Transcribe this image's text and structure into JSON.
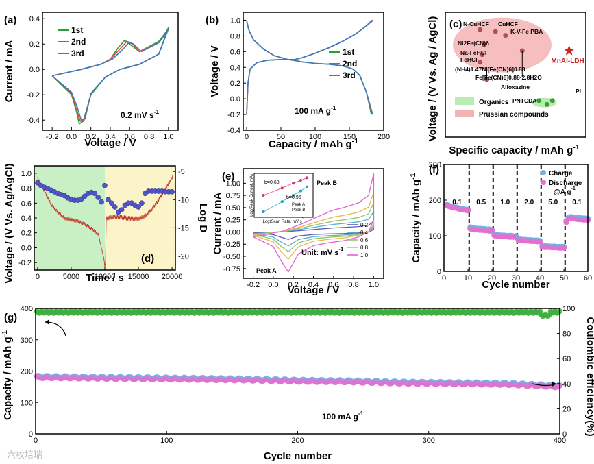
{
  "figure": {
    "watermark": "六枚培瑞"
  },
  "colors": {
    "cycle1": "#2ca02c",
    "cycle2": "#e0483e",
    "cycle3": "#3b7dbf",
    "green_bg": "#c9f0c4",
    "yellow_bg": "#fbf4c8",
    "pink_blob": "#f4b3b3",
    "green_blob": "#b8ecb0",
    "blue_dots": "#5055c8",
    "pink_dots": "#e87ac8",
    "charge": "#6fb4e8",
    "discharge": "#e46fcf",
    "ce_green": "#3fae3f",
    "star": "#d12222"
  },
  "chart_data": [
    {
      "id": "a",
      "type": "line",
      "panel_label": "(a)",
      "xlabel": "Voltage / V",
      "ylabel": "Current / mA",
      "xlim": [
        -0.3,
        1.1
      ],
      "ylim": [
        -0.48,
        0.45
      ],
      "xticks": [
        "-0.2",
        "0.0",
        "0.2",
        "0.4",
        "0.6",
        "0.8",
        "1.0"
      ],
      "yticks": [
        "-0.4",
        "-0.2",
        "0.0",
        "0.2",
        "0.4"
      ],
      "annotation": "0.2 mV s",
      "annotation_sup": "-1",
      "series": [
        {
          "name": "1st",
          "color": "#2ca02c",
          "x": [
            -0.2,
            0.0,
            0.05,
            0.08,
            0.12,
            0.2,
            0.35,
            0.5,
            0.7,
            0.9,
            1.0,
            0.98,
            0.9,
            0.7,
            0.6,
            0.55,
            0.48,
            0.4,
            0.3,
            0.1,
            -0.2
          ],
          "y": [
            -0.05,
            -0.2,
            -0.33,
            -0.43,
            -0.41,
            -0.2,
            -0.06,
            0.0,
            0.04,
            0.12,
            0.33,
            0.3,
            0.22,
            0.14,
            0.2,
            0.23,
            0.17,
            0.08,
            0.04,
            0.0,
            -0.05
          ]
        },
        {
          "name": "2nd",
          "color": "#e0483e",
          "x": [
            -0.2,
            0.0,
            0.05,
            0.09,
            0.13,
            0.2,
            0.35,
            0.5,
            0.7,
            0.9,
            1.0,
            0.98,
            0.9,
            0.7,
            0.62,
            0.57,
            0.5,
            0.4,
            0.3,
            0.1,
            -0.2
          ],
          "y": [
            -0.05,
            -0.19,
            -0.31,
            -0.41,
            -0.4,
            -0.19,
            -0.06,
            0.0,
            0.04,
            0.12,
            0.32,
            0.29,
            0.21,
            0.14,
            0.21,
            0.22,
            0.16,
            0.08,
            0.04,
            0.0,
            -0.05
          ]
        },
        {
          "name": "3rd",
          "color": "#3b7dbf",
          "x": [
            -0.2,
            0.0,
            0.06,
            0.1,
            0.14,
            0.2,
            0.35,
            0.5,
            0.7,
            0.9,
            1.0,
            0.98,
            0.9,
            0.72,
            0.64,
            0.59,
            0.52,
            0.42,
            0.3,
            0.1,
            -0.2
          ],
          "y": [
            -0.05,
            -0.18,
            -0.3,
            -0.4,
            -0.39,
            -0.19,
            -0.06,
            0.0,
            0.04,
            0.12,
            0.32,
            0.29,
            0.21,
            0.14,
            0.2,
            0.21,
            0.15,
            0.08,
            0.04,
            0.0,
            -0.05
          ]
        }
      ]
    },
    {
      "id": "b",
      "type": "line",
      "panel_label": "(b)",
      "xlabel": "Capacity / mAh g",
      "xlabel_sup": "-1",
      "ylabel": "Voltage / V",
      "xlim": [
        -5,
        200
      ],
      "ylim": [
        -0.4,
        1.1
      ],
      "xticks": [
        "0",
        "50",
        "100",
        "150",
        "200"
      ],
      "yticks": [
        "-0.4",
        "-0.2",
        "0.0",
        "0.2",
        "0.4",
        "0.6",
        "0.8",
        "1.0"
      ],
      "annotation": "100 mA g",
      "annotation_sup": "-1",
      "series": [
        {
          "name": "1st",
          "color": "#2ca02c",
          "charge_x": [
            0,
            2,
            5,
            15,
            30,
            50,
            70,
            80,
            100,
            120,
            140,
            160,
            175,
            185
          ],
          "charge_y": [
            -0.2,
            0.2,
            0.38,
            0.46,
            0.49,
            0.5,
            0.5,
            0.52,
            0.58,
            0.65,
            0.73,
            0.83,
            0.93,
            1.0
          ],
          "discharge_x": [
            0,
            3,
            10,
            25,
            40,
            60,
            75,
            80,
            100,
            120,
            140,
            155,
            165,
            175,
            182
          ],
          "discharge_y": [
            1.0,
            0.88,
            0.75,
            0.63,
            0.55,
            0.5,
            0.48,
            0.47,
            0.45,
            0.44,
            0.42,
            0.38,
            0.3,
            0.08,
            -0.2
          ]
        },
        {
          "name": "2nd",
          "color": "#e0483e",
          "charge_x": [
            0,
            2,
            5,
            15,
            30,
            50,
            70,
            80,
            100,
            120,
            140,
            160,
            175,
            184
          ],
          "charge_y": [
            -0.2,
            0.2,
            0.38,
            0.46,
            0.49,
            0.5,
            0.5,
            0.52,
            0.58,
            0.65,
            0.73,
            0.83,
            0.93,
            1.0
          ],
          "discharge_x": [
            0,
            3,
            10,
            25,
            40,
            60,
            75,
            80,
            100,
            120,
            140,
            155,
            165,
            175,
            183
          ],
          "discharge_y": [
            1.0,
            0.88,
            0.75,
            0.63,
            0.55,
            0.5,
            0.48,
            0.47,
            0.45,
            0.44,
            0.42,
            0.38,
            0.3,
            0.08,
            -0.2
          ]
        },
        {
          "name": "3rd",
          "color": "#3b7dbf",
          "charge_x": [
            0,
            2,
            5,
            15,
            30,
            50,
            70,
            80,
            100,
            120,
            140,
            160,
            175,
            183
          ],
          "charge_y": [
            -0.2,
            0.2,
            0.38,
            0.46,
            0.49,
            0.5,
            0.5,
            0.52,
            0.58,
            0.65,
            0.73,
            0.83,
            0.93,
            1.0
          ],
          "discharge_x": [
            0,
            3,
            10,
            25,
            40,
            60,
            75,
            80,
            100,
            120,
            140,
            155,
            165,
            175,
            184
          ],
          "discharge_y": [
            1.0,
            0.88,
            0.75,
            0.63,
            0.55,
            0.5,
            0.48,
            0.47,
            0.45,
            0.44,
            0.42,
            0.38,
            0.3,
            0.08,
            -0.2
          ]
        }
      ]
    },
    {
      "id": "c",
      "type": "scatter",
      "panel_label": "(c)",
      "xlabel": "Specific capacity / mAh g",
      "xlabel_sup": "-1",
      "ylabel": "Voltage / (V Vs. Ag / AgCl)",
      "legend": [
        {
          "name": "Organics",
          "color": "#b8ecb0"
        },
        {
          "name": "Prussian compounds",
          "color": "#f4b3b3"
        }
      ],
      "points": [
        {
          "label": "N-CuHCF",
          "x": 52,
          "y": 0.86
        },
        {
          "label": "CuHCF",
          "x": 75,
          "y": 0.85
        },
        {
          "label": "K-V-Fe PBA",
          "x": 90,
          "y": 0.83
        },
        {
          "label": "Ni2Fe(CN)6",
          "x": 58,
          "y": 0.78
        },
        {
          "label": "Na-FeHCF",
          "x": 55,
          "y": 0.73
        },
        {
          "label": "FeHCF",
          "x": 52,
          "y": 0.69
        },
        {
          "label": "(NH4)1.47Ni[Fe(CN)6]0.88",
          "x": 62,
          "y": 0.6
        },
        {
          "label": "Fe[Fe(CN)6]0.88·2.8H2O",
          "x": 115,
          "y": 0.75
        },
        {
          "label": "Alloxazine",
          "x": 140,
          "y": 0.49
        },
        {
          "label": "PNTCDA",
          "x": 152,
          "y": 0.47
        },
        {
          "label": "PI",
          "x": 160,
          "y": 0.49
        },
        {
          "label": "MnAl-LDH",
          "x": 185,
          "y": 0.75
        }
      ],
      "highlight": "MnAl-LDH"
    },
    {
      "id": "d",
      "type": "line",
      "panel_label": "(d)",
      "xlabel": "Time / s",
      "ylabel": "Voltage / (V Vs. Ag/AgCl)",
      "y2label": "Log D",
      "xlim": [
        -500,
        20500
      ],
      "ylim": [
        -0.3,
        1.1
      ],
      "y2lim": [
        -22.5,
        -4
      ],
      "xticks": [
        "0",
        "5000",
        "10000",
        "15000",
        "20000"
      ],
      "yticks": [
        "-0.2",
        "0.0",
        "0.2",
        "0.4",
        "0.6",
        "0.8",
        "1.0"
      ],
      "y2ticks": [
        "-5",
        "-10",
        "-15",
        "-20"
      ],
      "voltage_envelope_t": [
        0,
        1000,
        2000,
        3000,
        4000,
        5000,
        6000,
        7000,
        8000,
        9000,
        10000,
        10050,
        11000,
        12000,
        13000,
        14000,
        15000,
        16000,
        17000,
        18000,
        19000,
        20000
      ],
      "voltage_envelope_v": [
        0.95,
        0.78,
        0.6,
        0.5,
        0.42,
        0.4,
        0.38,
        0.34,
        0.28,
        0.2,
        -0.2,
        0.42,
        0.44,
        0.45,
        0.43,
        0.42,
        0.42,
        0.46,
        0.55,
        0.68,
        0.82,
        0.98
      ],
      "logD_t": [
        0,
        500,
        1000,
        1500,
        2000,
        2500,
        3000,
        3500,
        4000,
        4500,
        5000,
        5500,
        6000,
        6500,
        7000,
        7500,
        8000,
        8500,
        9000,
        9500,
        10000,
        10500,
        11000,
        11500,
        12000,
        12500,
        13000,
        13500,
        14000,
        14500,
        15000,
        15500,
        16000,
        16500,
        17000,
        17500,
        18000,
        18500,
        19000,
        19500,
        20000
      ],
      "logD_v": [
        -7,
        -7.5,
        -7.8,
        -8,
        -8.3,
        -8.6,
        -8.9,
        -9.1,
        -9.3,
        -9.7,
        -10,
        -10.1,
        -10.1,
        -9.9,
        -9.4,
        -8.9,
        -8.7,
        -8.9,
        -9.6,
        -10.4,
        -7.5,
        -10,
        -10.6,
        -11.3,
        -12.2,
        -11.8,
        -11,
        -10.6,
        -10.6,
        -11,
        -11.3,
        -10.6,
        -8.9,
        -8.5,
        -8.5,
        -8.5,
        -8.5,
        -8.5,
        -8.6,
        -8.6,
        -8.6
      ]
    },
    {
      "id": "e",
      "type": "line",
      "panel_label": "(e)",
      "xlabel": "Voltage / V",
      "ylabel": "Current / mA",
      "xlim": [
        -0.3,
        1.1
      ],
      "ylim": [
        -0.95,
        1.3
      ],
      "xticks": [
        "-0.2",
        "0.0",
        "0.2",
        "0.4",
        "0.6",
        "0.8",
        "1.0"
      ],
      "yticks": [
        "-0.75",
        "-0.50",
        "-0.25",
        "0.00",
        "0.25",
        "0.50",
        "0.75",
        "1.00"
      ],
      "unit_note": "Unit: mV s",
      "unit_note_sup": "-1",
      "peak_a": "Peak A",
      "peak_b": "Peak B",
      "series": [
        {
          "name": "0.2",
          "color": "#5a5fb8",
          "scale": 0.2
        },
        {
          "name": "0.4",
          "color": "#5ab0cf",
          "scale": 0.37
        },
        {
          "name": "0.6",
          "color": "#8fc66a",
          "scale": 0.52
        },
        {
          "name": "0.8",
          "color": "#e8b84a",
          "scale": 0.7
        },
        {
          "name": "1.0",
          "color": "#e55fd0",
          "scale": 1.0
        }
      ],
      "base_x": [
        -0.2,
        0.0,
        0.08,
        0.15,
        0.25,
        0.4,
        0.55,
        0.7,
        0.85,
        0.95,
        1.0,
        1.0,
        0.95,
        0.85,
        0.7,
        0.6,
        0.45,
        0.3,
        0.1,
        -0.2
      ],
      "base_y": [
        -0.1,
        -0.3,
        -0.6,
        -0.82,
        -0.45,
        -0.28,
        -0.22,
        -0.18,
        -0.1,
        0.0,
        0.25,
        1.2,
        0.75,
        0.6,
        0.5,
        0.45,
        0.32,
        0.18,
        0.02,
        -0.1
      ],
      "inset": {
        "xlabel": "Log(Scan Rate, mV s",
        "xlabel_sup": "-1",
        "ylabel": "Log(Peak Current, mA)",
        "b_a": "b=0.68",
        "b_b": "b=0.95",
        "legend_a": "Peak A",
        "legend_b": "Peak B",
        "x": [
          -0.7,
          -0.4,
          -0.22,
          -0.1,
          0.0
        ],
        "peak_a": [
          -0.75,
          -0.55,
          -0.42,
          -0.34,
          -0.27
        ],
        "peak_b": [
          -1.2,
          -0.92,
          -0.75,
          -0.63,
          -0.52
        ],
        "xticks": [
          "-0.8",
          "-0.6",
          "-0.4",
          "-0.2",
          "0.0"
        ],
        "yticks": [
          "-0.2",
          "-0.4",
          "-0.6",
          "-0.8",
          "-1.0",
          "-1.2"
        ]
      }
    },
    {
      "id": "f",
      "type": "scatter",
      "panel_label": "(f)",
      "xlabel": "Cycle number",
      "ylabel": "Capacity / mAh g",
      "ylabel_sup": "-1",
      "xlim": [
        0,
        60
      ],
      "ylim": [
        0,
        300
      ],
      "xticks": [
        "0",
        "10",
        "20",
        "30",
        "40",
        "50",
        "60"
      ],
      "yticks": [
        "0",
        "100",
        "200",
        "300"
      ],
      "rate_labels": [
        "0.1",
        "0.5",
        "1.0",
        "2.0",
        "5.0",
        "0.1"
      ],
      "rate_unit": "@A g",
      "rate_unit_sup": "-1",
      "legend": [
        "Charge",
        "Discharge"
      ],
      "segments": [
        {
          "from": 1,
          "to": 10,
          "charge": [
            188,
            185,
            183,
            181,
            180,
            178,
            176,
            175,
            174,
            173
          ],
          "discharge": [
            186,
            183,
            181,
            179,
            178,
            176,
            174,
            173,
            172,
            171
          ]
        },
        {
          "from": 11,
          "to": 20,
          "charge": [
            124,
            122,
            121,
            120,
            120,
            119,
            119,
            118,
            118,
            117
          ],
          "discharge": [
            120,
            118,
            117,
            117,
            116,
            116,
            115,
            115,
            114,
            114
          ]
        },
        {
          "from": 21,
          "to": 30,
          "charge": [
            104,
            103,
            102,
            101,
            101,
            100,
            100,
            100,
            99,
            99
          ],
          "discharge": [
            101,
            100,
            99,
            99,
            98,
            98,
            97,
            97,
            97,
            96
          ]
        },
        {
          "from": 31,
          "to": 40,
          "charge": [
            91,
            90,
            89,
            89,
            88,
            88,
            87,
            87,
            87,
            86
          ],
          "discharge": [
            88,
            87,
            87,
            86,
            86,
            85,
            85,
            85,
            84,
            84
          ]
        },
        {
          "from": 41,
          "to": 50,
          "charge": [
            72,
            71,
            71,
            70,
            70,
            70,
            69,
            69,
            69,
            69
          ],
          "discharge": [
            69,
            68,
            68,
            68,
            67,
            67,
            67,
            66,
            66,
            66
          ]
        },
        {
          "from": 51,
          "to": 60,
          "charge": [
            142,
            152,
            153,
            152,
            151,
            150,
            150,
            149,
            149,
            148
          ],
          "discharge": [
            138,
            148,
            149,
            148,
            147,
            146,
            146,
            145,
            145,
            144
          ]
        }
      ]
    },
    {
      "id": "g",
      "type": "scatter",
      "panel_label": "(g)",
      "xlabel": "Cycle number",
      "ylabel": "Capacity / mAh g",
      "ylabel_sup": "-1",
      "y2label": "Coulombic efficiency(%)",
      "xlim": [
        0,
        400
      ],
      "ylim": [
        0,
        400
      ],
      "y2lim": [
        0,
        100
      ],
      "xticks": [
        "0",
        "100",
        "200",
        "300",
        "400"
      ],
      "yticks": [
        "0",
        "100",
        "200",
        "300",
        "400"
      ],
      "y2ticks": [
        "0",
        "20",
        "40",
        "60",
        "80",
        "100"
      ],
      "annotation": "100 mA g",
      "annotation_sup": "-1",
      "capacity_x": [
        0,
        40,
        80,
        120,
        160,
        200,
        240,
        280,
        320,
        360,
        400
      ],
      "capacity_y": [
        180,
        178,
        176,
        174,
        172,
        168,
        166,
        162,
        160,
        158,
        150
      ],
      "ce_mean": 97
    }
  ]
}
